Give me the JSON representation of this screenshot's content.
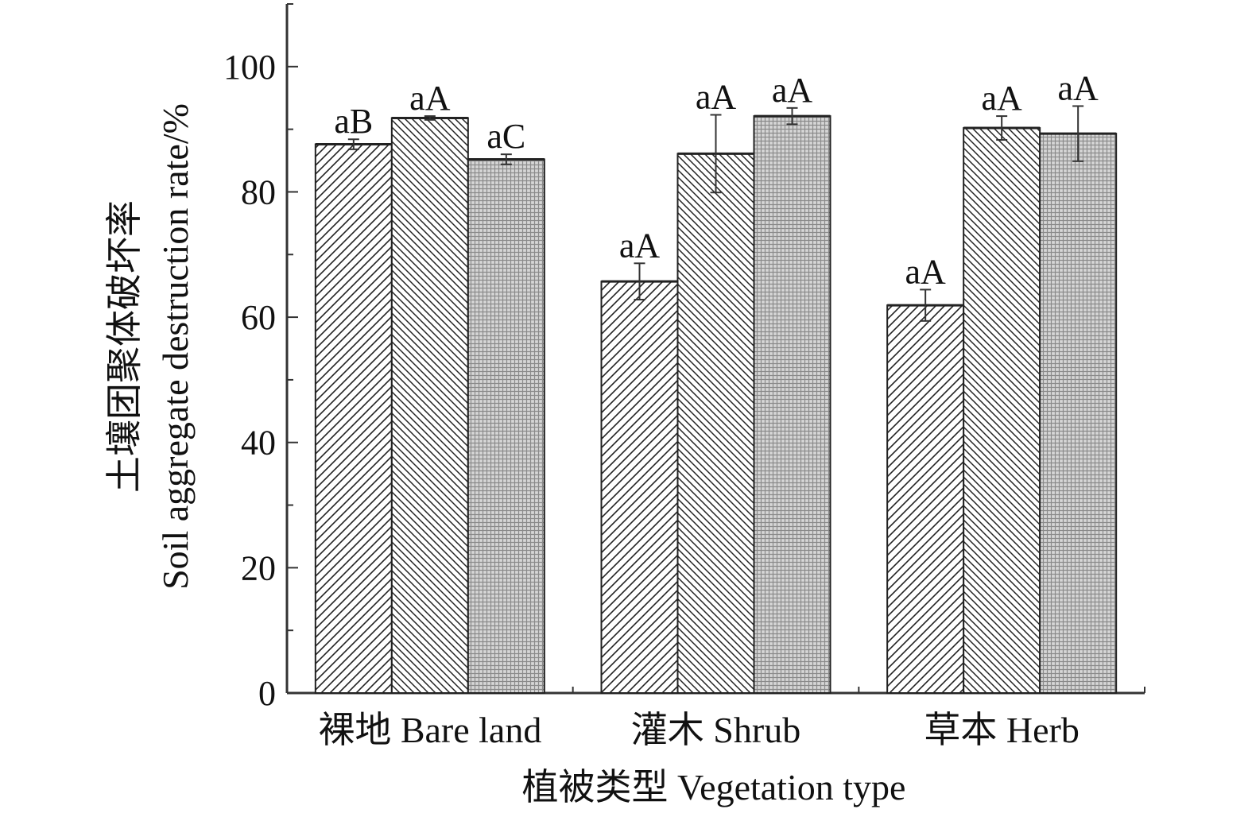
{
  "chart_data": {
    "type": "bar",
    "xlabel": "植被类型 Vegetation type",
    "ylabel_line1": "土壤团聚体破坏率",
    "ylabel_line2": "Soil aggregate destruction rate/%",
    "ylim": [
      0,
      110
    ],
    "yticks": [
      0,
      20,
      40,
      60,
      80,
      100
    ],
    "categories": [
      "裸地 Bare land",
      "灌木 Shrub",
      "草本 Herb"
    ],
    "legend": "none",
    "grid": false,
    "series": [
      {
        "pattern": "diagonal-up",
        "values": [
          87.6,
          65.7,
          61.9
        ],
        "errors": [
          0.8,
          2.9,
          2.5
        ],
        "labels": [
          "aB",
          "aA",
          "aA"
        ]
      },
      {
        "pattern": "diagonal-down",
        "values": [
          91.8,
          86.1,
          90.2
        ],
        "errors": [
          0.3,
          6.2,
          1.9
        ],
        "labels": [
          "aA",
          "aA",
          "aA"
        ]
      },
      {
        "pattern": "crosshatch-gray",
        "values": [
          85.2,
          92.1,
          89.3
        ],
        "errors": [
          0.8,
          1.3,
          4.4
        ],
        "labels": [
          "aC",
          "aA",
          "aA"
        ]
      }
    ]
  }
}
